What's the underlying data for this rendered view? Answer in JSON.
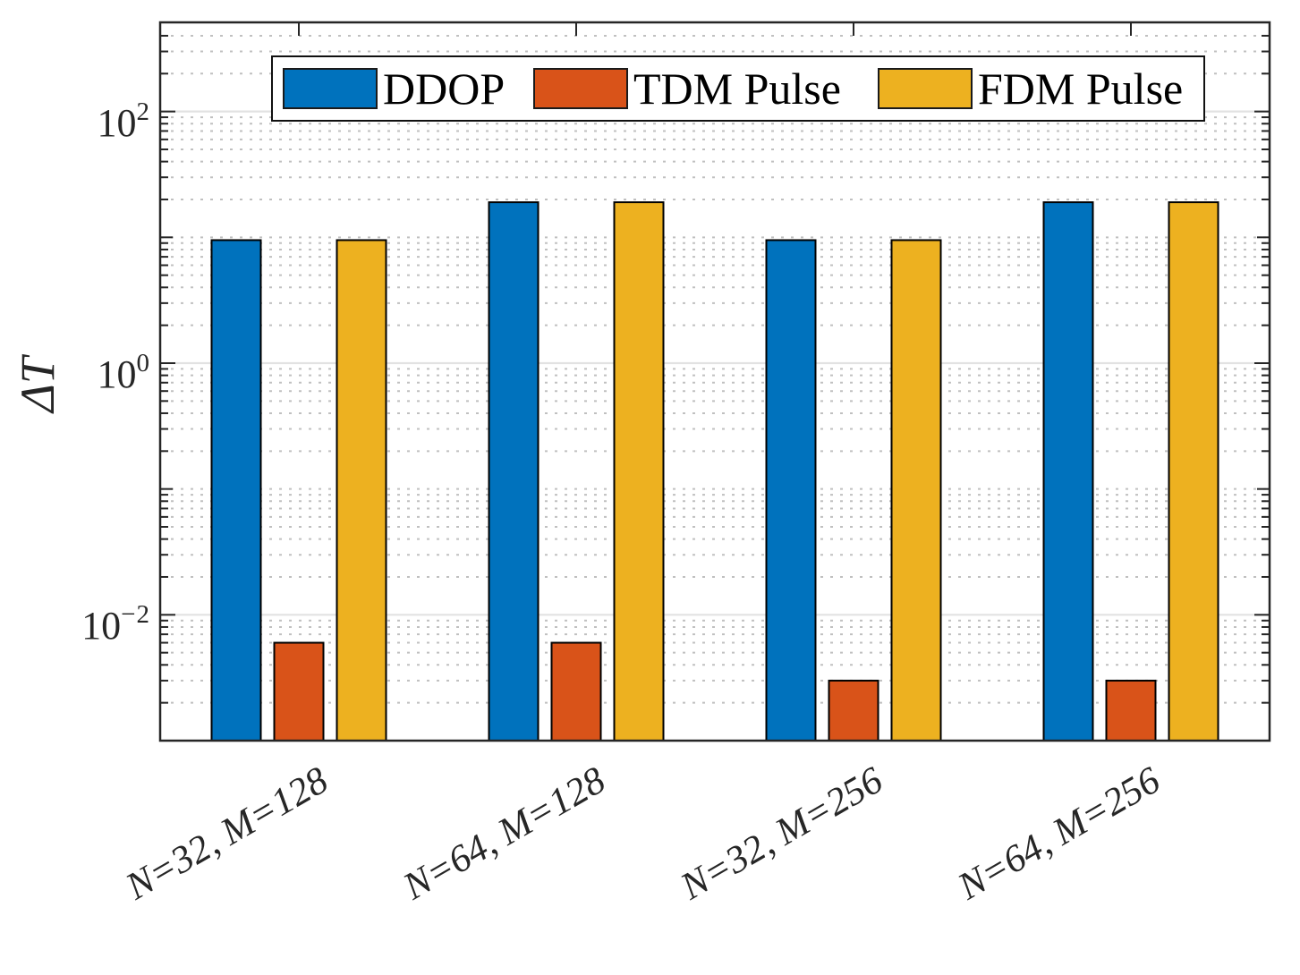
{
  "chart_data": {
    "type": "bar",
    "title": "",
    "categories": [
      "N=32, M=128",
      "N=64, M=128",
      "N=32, M=256",
      "N=64, M=256"
    ],
    "series": [
      {
        "name": "DDOP",
        "color": "#0072BD",
        "values": [
          9.5,
          19,
          9.5,
          19
        ]
      },
      {
        "name": "TDM Pulse",
        "color": "#D95319",
        "values": [
          0.006,
          0.006,
          0.003,
          0.003
        ]
      },
      {
        "name": "FDM Pulse",
        "color": "#EDB120",
        "values": [
          9.5,
          19,
          9.5,
          19
        ]
      }
    ],
    "xlabel": "",
    "ylabel": "ΔT",
    "yscale": "log",
    "ylim": [
      0.001,
      512
    ],
    "y_tick_exponents": [
      2,
      0,
      -2
    ],
    "grid": {
      "major": true,
      "minor": true,
      "minor_style": "dotted"
    },
    "legend_position": "top-inside"
  },
  "style_colors": {
    "frame": "#262626",
    "major_grid": "#e2e2e2",
    "minor_grid": "#c0c0c0",
    "bar_edge": "#000000",
    "text": "#262626"
  }
}
